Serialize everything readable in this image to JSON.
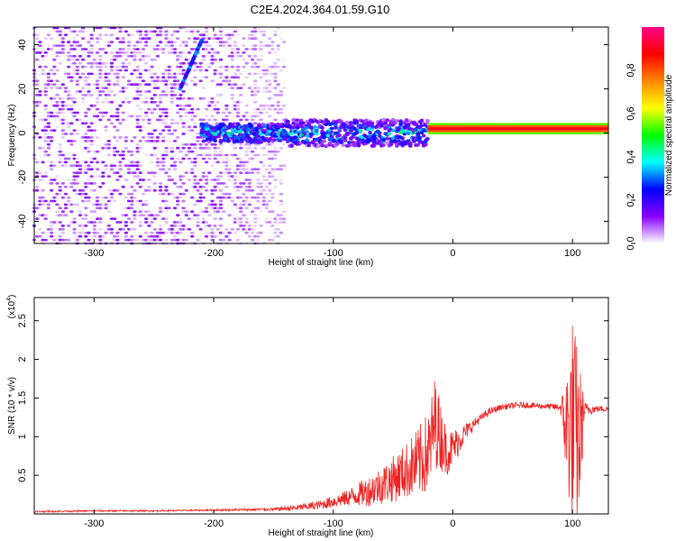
{
  "title": "C2E4.2024.364.01.59.G10",
  "chart_data": [
    {
      "type": "heatmap",
      "xlabel": "Height of straight line (km)",
      "ylabel": "Frequency (Hz)",
      "xlim": [
        -350,
        130
      ],
      "ylim": [
        -50,
        48
      ],
      "xticks": [
        -300,
        -200,
        -100,
        0,
        100
      ],
      "yticks": [
        -40,
        -20,
        0,
        20,
        40
      ],
      "colorbar": {
        "label": "Normalized spectral amplitude",
        "range": [
          0,
          1
        ],
        "ticks": [
          0.0,
          0.2,
          0.4,
          0.6,
          0.8
        ],
        "colors": [
          "#ffffff",
          "#8800ff",
          "#0000ff",
          "#00ffff",
          "#00ff00",
          "#ffff00",
          "#ff8800",
          "#ff0000",
          "#ff0088"
        ]
      },
      "features": [
        {
          "kind": "scatter-noise",
          "x_range": [
            -350,
            -140
          ],
          "y_range": [
            -50,
            48
          ],
          "amplitude": 0.08
        },
        {
          "kind": "band",
          "x_range": [
            -210,
            -20
          ],
          "center_freq": 0,
          "half_width": 6,
          "amplitude": 0.25
        },
        {
          "kind": "line",
          "x_range": [
            -20,
            130
          ],
          "center_freq": 2,
          "amplitude": 0.9
        },
        {
          "kind": "streak",
          "x_range": [
            -228,
            -210
          ],
          "y_range": [
            20,
            42
          ],
          "amplitude": 0.2
        }
      ]
    },
    {
      "type": "line",
      "xlabel": "Height of straight line (km)",
      "ylabel": "SNR (10 * v/v)",
      "yscale_label": "(x10",
      "yscale_exp": "4",
      "yscale_close": ")",
      "xlim": [
        -350,
        130
      ],
      "ylim": [
        0,
        2.8
      ],
      "xticks": [
        -300,
        -200,
        -100,
        0,
        100
      ],
      "yticks": [
        0.5,
        1.0,
        1.5,
        2.0,
        2.5
      ],
      "color": "#ee2222",
      "series": [
        {
          "x": [
            -350,
            -300,
            -250,
            -200,
            -150,
            -130,
            -110,
            -90,
            -70,
            -50,
            -40,
            -30,
            -20,
            -15,
            -10,
            -5,
            0,
            10,
            20,
            30,
            40,
            50,
            60,
            70,
            80,
            90,
            95,
            100,
            105,
            110,
            120,
            130
          ],
          "y": [
            0.03,
            0.04,
            0.04,
            0.05,
            0.06,
            0.08,
            0.12,
            0.2,
            0.3,
            0.45,
            0.55,
            0.65,
            0.8,
            1.2,
            1.0,
            0.8,
            0.85,
            1.05,
            1.2,
            1.32,
            1.38,
            1.4,
            1.41,
            1.4,
            1.39,
            1.38,
            1.1,
            1.2,
            0.9,
            1.35,
            1.36,
            1.36
          ],
          "spread": [
            0.01,
            0.01,
            0.01,
            0.01,
            0.02,
            0.04,
            0.06,
            0.1,
            0.2,
            0.3,
            0.35,
            0.45,
            0.55,
            0.6,
            0.45,
            0.3,
            0.25,
            0.12,
            0.06,
            0.05,
            0.04,
            0.04,
            0.04,
            0.04,
            0.04,
            0.05,
            0.8,
            1.4,
            1.2,
            0.1,
            0.04,
            0.04
          ]
        }
      ]
    }
  ]
}
